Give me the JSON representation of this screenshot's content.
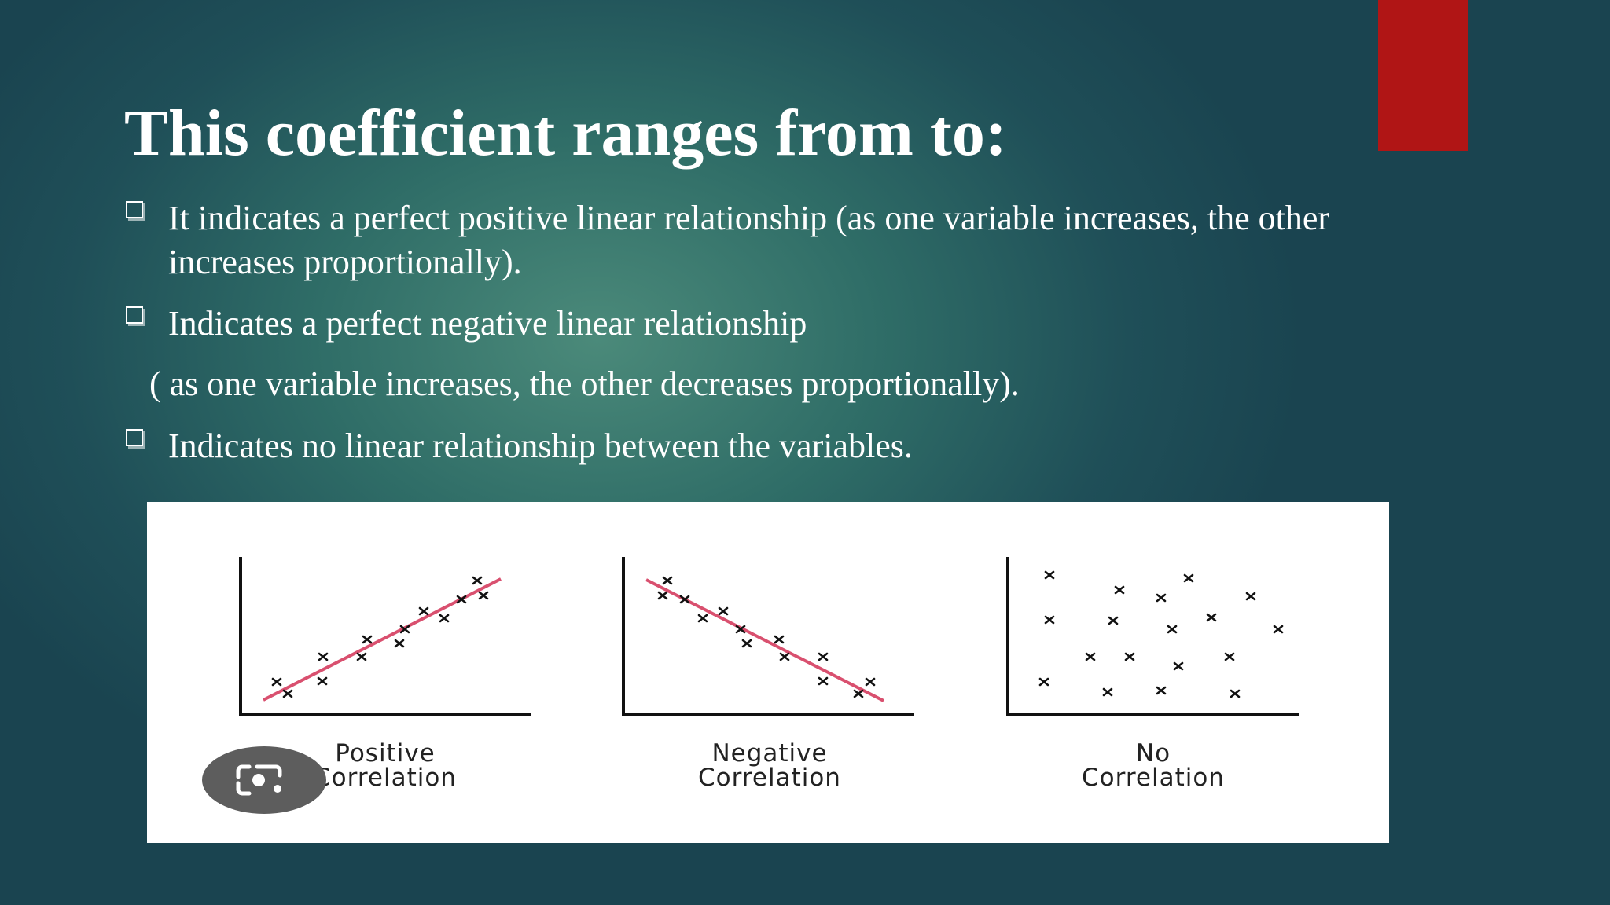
{
  "slide": {
    "title": "This coefficient ranges from to:",
    "bullets": [
      {
        "lines": [
          "It indicates a perfect positive linear relationship (as one variable increases, the other",
          "increases proportionally)."
        ]
      },
      {
        "lines": [
          "Indicates a perfect negative linear relationship"
        ]
      },
      {
        "lines": [
          "( as one variable increases, the other decreases proportionally)."
        ]
      },
      {
        "lines": [
          "Indicates no linear relationship between the variables."
        ]
      }
    ],
    "accent_color": "#b01515"
  },
  "figure": {
    "panels": [
      {
        "caption_line1": "Positive",
        "caption_line2": "Correlation"
      },
      {
        "caption_line1": "Negative",
        "caption_line2": "Correlation"
      },
      {
        "caption_line1": "No",
        "caption_line2": "Correlation"
      }
    ],
    "trend_line_color": "#d9506f",
    "lens_icon": "camera-lens-icon"
  }
}
